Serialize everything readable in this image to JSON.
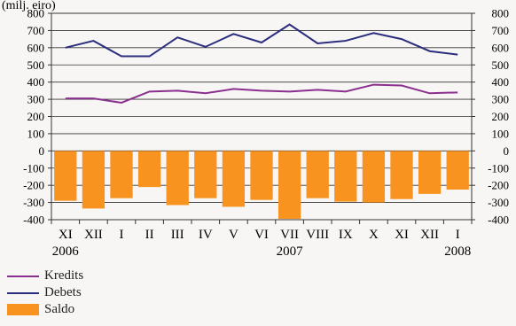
{
  "chart_data": {
    "type": "bar+line",
    "unit_label": "(milj. eiro)",
    "categories": [
      "XI",
      "XII",
      "I",
      "II",
      "III",
      "IV",
      "V",
      "VI",
      "VII",
      "VIII",
      "IX",
      "X",
      "XI",
      "XII",
      "I"
    ],
    "year_labels": [
      {
        "index": 0,
        "label": "2006"
      },
      {
        "index": 8,
        "label": "2007"
      },
      {
        "index": 14,
        "label": "2008"
      }
    ],
    "ylim": [
      -400,
      800
    ],
    "yticks": [
      -400,
      -300,
      -200,
      -100,
      0,
      100,
      200,
      300,
      400,
      500,
      600,
      700,
      800
    ],
    "grid": true,
    "legend_position": "bottom-left",
    "series": [
      {
        "name": "Kredits",
        "type": "line",
        "color": "#8b2f8f",
        "values": [
          305,
          305,
          280,
          345,
          350,
          335,
          360,
          350,
          345,
          355,
          345,
          385,
          380,
          335,
          340
        ]
      },
      {
        "name": "Debets",
        "type": "line",
        "color": "#2b2d7e",
        "values": [
          600,
          640,
          550,
          550,
          660,
          605,
          680,
          630,
          735,
          625,
          640,
          685,
          650,
          580,
          560
        ]
      },
      {
        "name": "Saldo",
        "type": "bar",
        "color": "#f7931e",
        "values": [
          -290,
          -335,
          -275,
          -210,
          -315,
          -275,
          -325,
          -285,
          -395,
          -275,
          -295,
          -300,
          -280,
          -250,
          -225
        ]
      }
    ]
  }
}
